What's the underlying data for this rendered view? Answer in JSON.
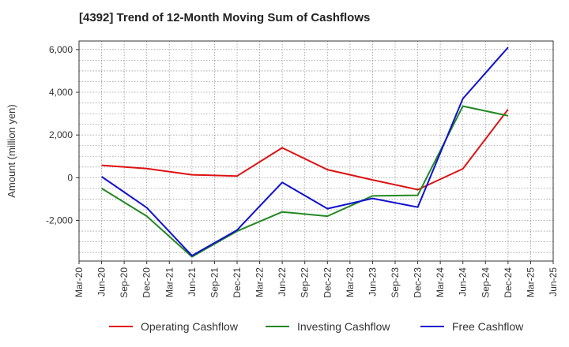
{
  "title": "[4392]  Trend of 12-Month Moving Sum of Cashflows",
  "chart_data": {
    "type": "line",
    "title": "[4392]  Trend of 12-Month Moving Sum of Cashflows",
    "xlabel": "",
    "ylabel": "Amount (million yen)",
    "x_ticks": [
      "Mar-20",
      "Jun-20",
      "Sep-20",
      "Dec-20",
      "Mar-21",
      "Jun-21",
      "Sep-21",
      "Dec-21",
      "Mar-22",
      "Jun-22",
      "Sep-22",
      "Dec-22",
      "Mar-23",
      "Jun-23",
      "Sep-23",
      "Dec-23",
      "Mar-24",
      "Jun-24",
      "Sep-24",
      "Dec-24",
      "Mar-25",
      "Jun-25"
    ],
    "y_ticks": [
      -2000,
      0,
      2000,
      4000,
      6000
    ],
    "y_tick_labels": [
      "-2,000",
      "0",
      "2,000",
      "4,000",
      "6,000"
    ],
    "ylim": [
      -3900,
      6400
    ],
    "grid": true,
    "legend_position": "bottom",
    "series": [
      {
        "name": "Operating Cashflow",
        "color": "#dd1111",
        "points": [
          {
            "x": "Jun-20",
            "y": 580
          },
          {
            "x": "Dec-20",
            "y": 430
          },
          {
            "x": "Jun-21",
            "y": 140
          },
          {
            "x": "Dec-21",
            "y": 80
          },
          {
            "x": "Jun-22",
            "y": 1400
          },
          {
            "x": "Dec-22",
            "y": 380
          },
          {
            "x": "Jun-23",
            "y": -100
          },
          {
            "x": "Dec-23",
            "y": -560
          },
          {
            "x": "Jun-24",
            "y": 420
          },
          {
            "x": "Dec-24",
            "y": 3200
          }
        ]
      },
      {
        "name": "Investing Cashflow",
        "color": "#228822",
        "points": [
          {
            "x": "Jun-20",
            "y": -500
          },
          {
            "x": "Dec-20",
            "y": -1800
          },
          {
            "x": "Jun-21",
            "y": -3700
          },
          {
            "x": "Dec-21",
            "y": -2500
          },
          {
            "x": "Jun-22",
            "y": -1600
          },
          {
            "x": "Dec-22",
            "y": -1800
          },
          {
            "x": "Jun-23",
            "y": -850
          },
          {
            "x": "Dec-23",
            "y": -820
          },
          {
            "x": "Jun-24",
            "y": 3350
          },
          {
            "x": "Dec-24",
            "y": 2900
          }
        ]
      },
      {
        "name": "Free Cashflow",
        "color": "#1111cc",
        "points": [
          {
            "x": "Jun-20",
            "y": 50
          },
          {
            "x": "Dec-20",
            "y": -1400
          },
          {
            "x": "Jun-21",
            "y": -3650
          },
          {
            "x": "Dec-21",
            "y": -2450
          },
          {
            "x": "Jun-22",
            "y": -220
          },
          {
            "x": "Dec-22",
            "y": -1450
          },
          {
            "x": "Jun-23",
            "y": -970
          },
          {
            "x": "Dec-23",
            "y": -1380
          },
          {
            "x": "Jun-24",
            "y": 3700
          },
          {
            "x": "Dec-24",
            "y": 6100
          }
        ]
      }
    ]
  }
}
